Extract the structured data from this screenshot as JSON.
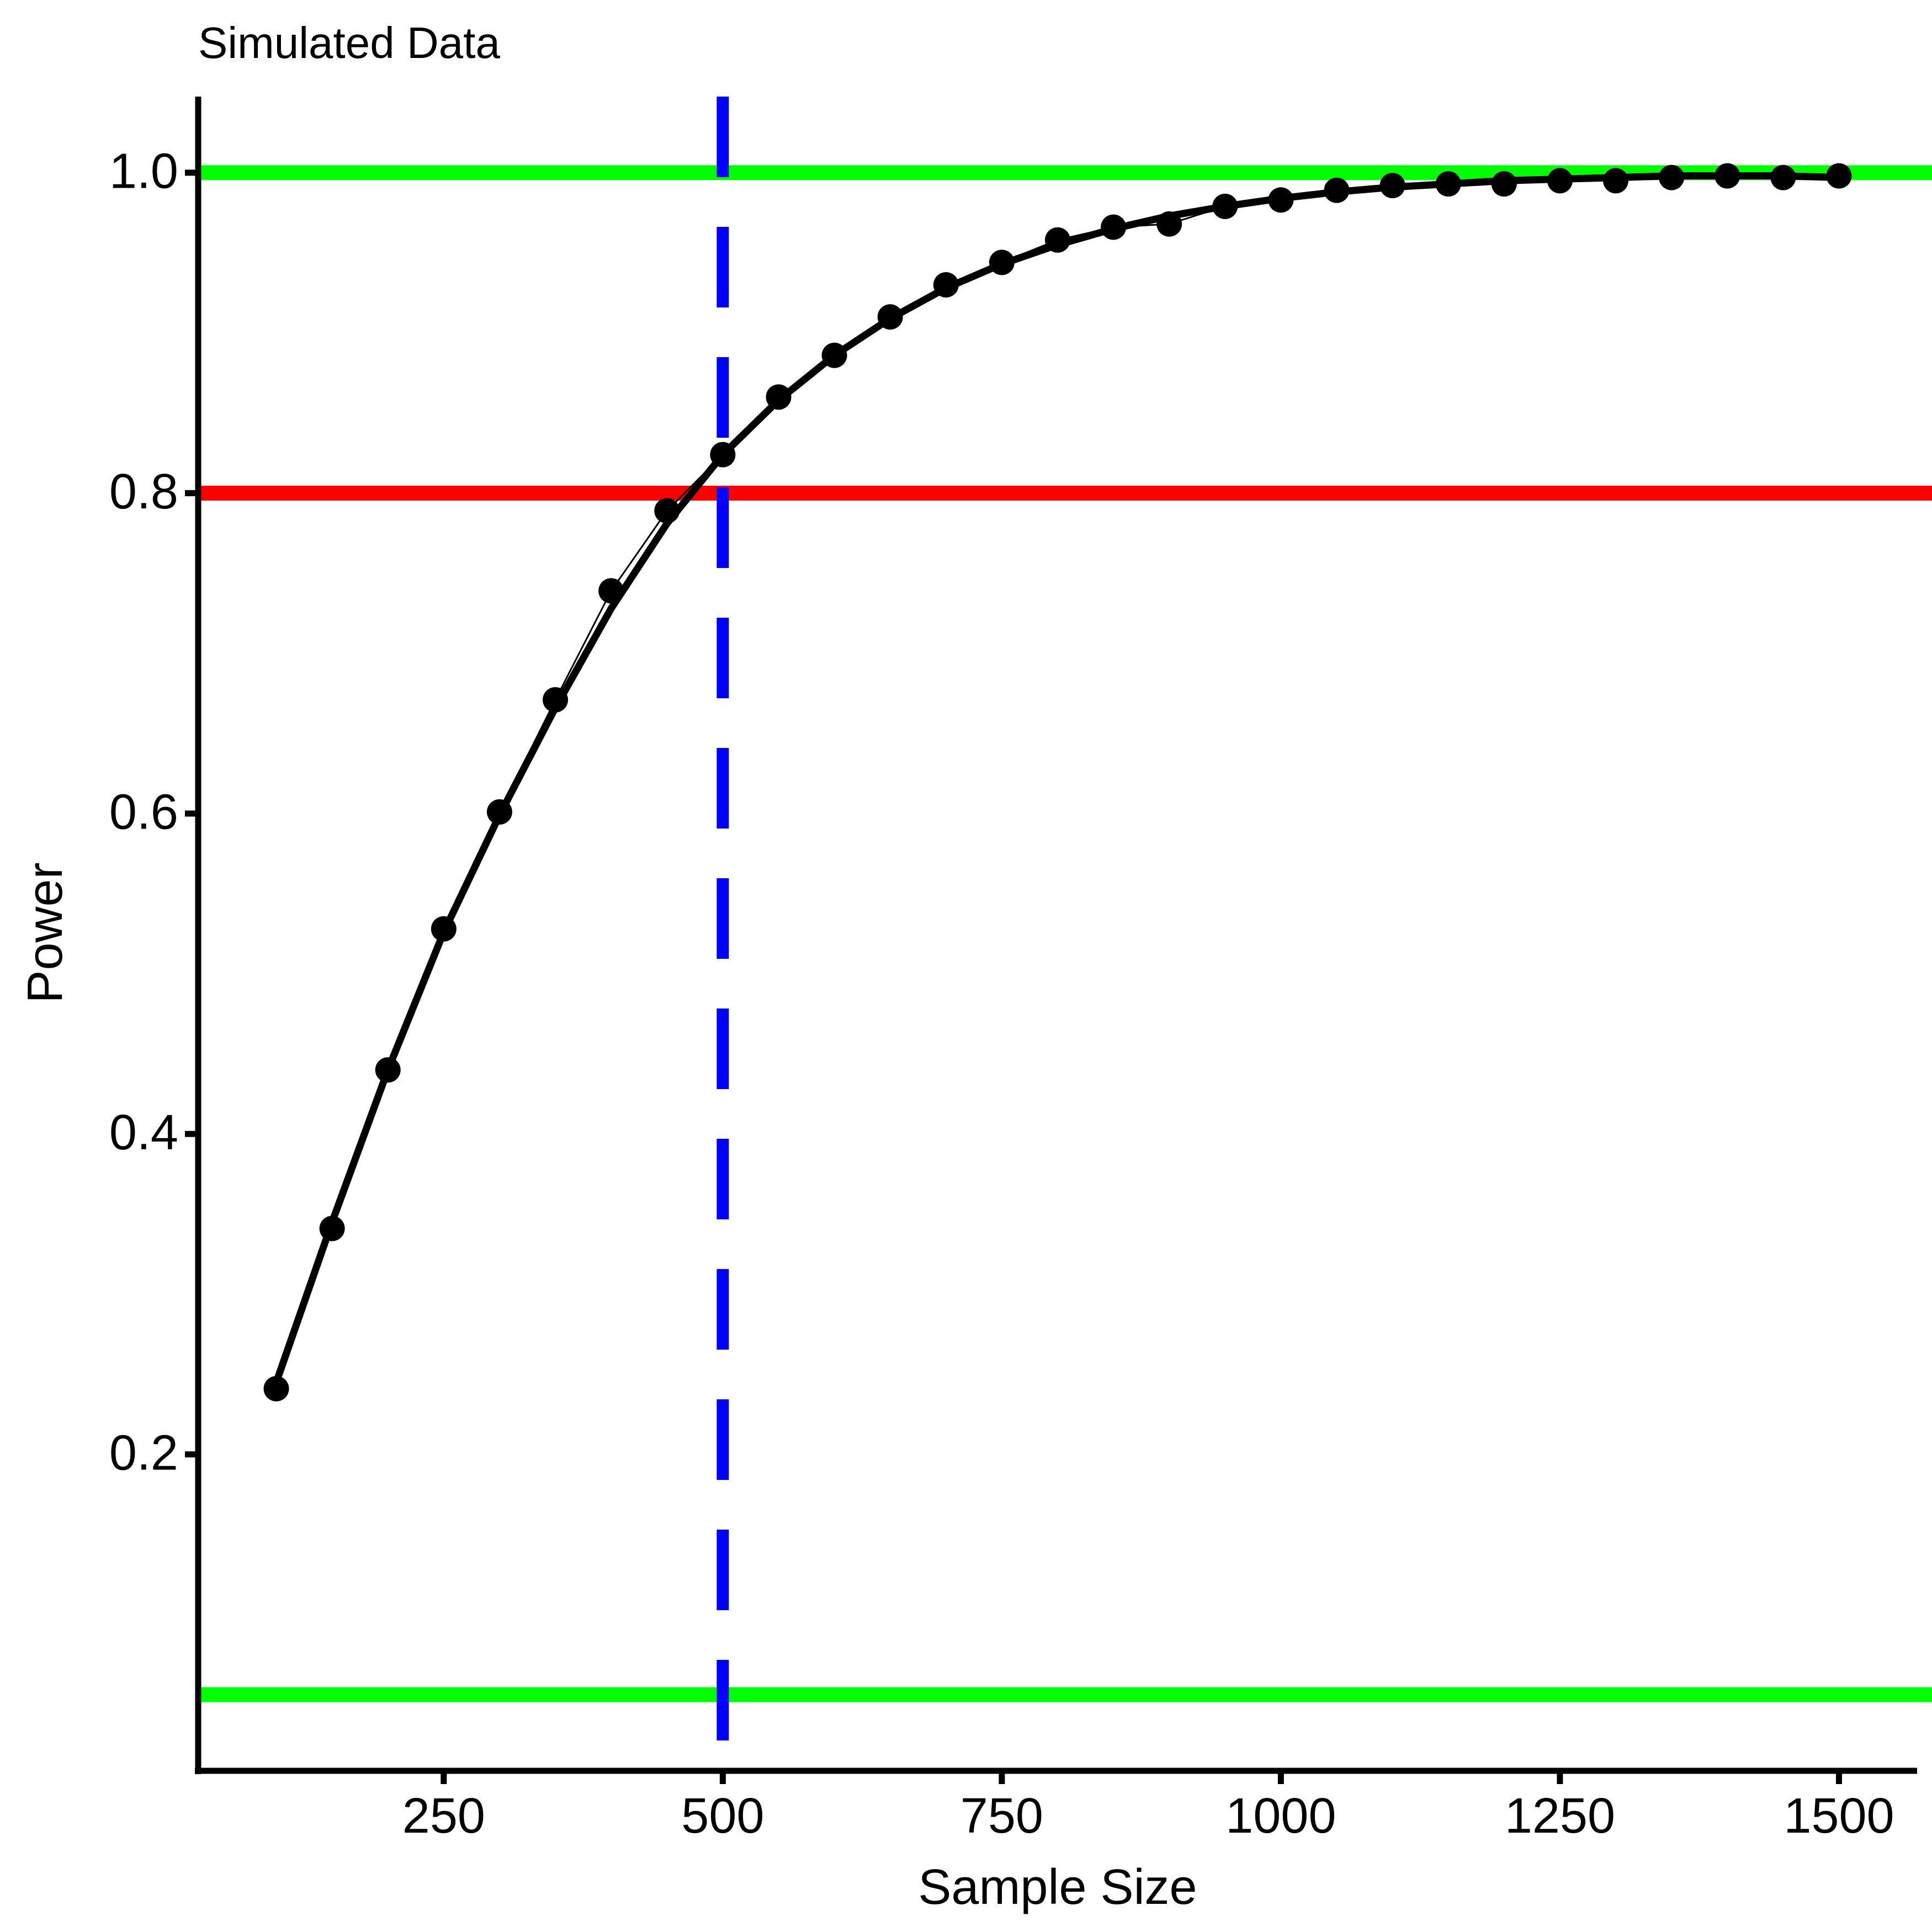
{
  "chart_data": {
    "type": "line",
    "title": "Simulated Data",
    "x_label": "Sample Size",
    "y_label": "Power",
    "x": [
      100,
      150,
      200,
      250,
      300,
      350,
      400,
      450,
      500,
      550,
      600,
      650,
      700,
      750,
      800,
      850,
      900,
      950,
      1000,
      1050,
      1100,
      1150,
      1200,
      1250,
      1300,
      1350,
      1400,
      1450,
      1500
    ],
    "series": [
      {
        "color": "#000000",
        "values": [
          0.241,
          0.341,
          0.44,
          0.528,
          0.601,
          0.671,
          0.739,
          0.789,
          0.824,
          0.86,
          0.886,
          0.91,
          0.93,
          0.944,
          0.958,
          0.966,
          0.968,
          0.979,
          0.983,
          0.989,
          0.992,
          0.993,
          0.993,
          0.995,
          0.995,
          0.997,
          0.998,
          0.997,
          0.998
        ]
      },
      {
        "color": "#000000",
        "values": [
          0.245,
          0.345,
          0.44,
          0.526,
          0.599,
          0.666,
          0.728,
          0.781,
          0.824,
          0.858,
          0.886,
          0.909,
          0.928,
          0.943,
          0.955,
          0.965,
          0.973,
          0.979,
          0.984,
          0.988,
          0.991,
          0.993,
          0.995,
          0.996,
          0.997,
          0.998,
          0.998,
          0.998,
          0.997
        ]
      }
    ],
    "hlines": [
      {
        "value": 1,
        "color": "#00ff00"
      },
      {
        "value": 0.8,
        "color": "#ff0000"
      },
      {
        "value": 0.05,
        "color": "#00ff00"
      }
    ],
    "vline": {
      "value": 500,
      "color": "#0000ff"
    },
    "xlim": [
      30,
      1570
    ],
    "ylim": [
      0.0025,
      1.0475
    ],
    "xticks": [
      250,
      500,
      750,
      1000,
      1250,
      1500
    ],
    "yticks": [
      0.2,
      0.4,
      0.6,
      0.8,
      {
        "value": 1,
        "label": "1.0"
      }
    ]
  }
}
